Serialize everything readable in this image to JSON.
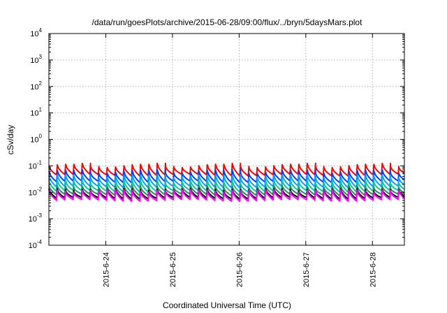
{
  "chart_data": {
    "type": "line",
    "title": "/data/run/goesPlots/archive/2015-06-28/09:00/flux/../bryn/5daysMars.plot",
    "xlabel": "Coordinated Universal Time (UTC)",
    "ylabel": "cSv/day",
    "y_scale": "log",
    "ylim": [
      0.0001,
      10000
    ],
    "xlim": [
      "2015-06-23T03:30",
      "2015-06-28T11:30"
    ],
    "grid": true,
    "legend": "none",
    "y_ticks": [
      {
        "base": "10",
        "exp": "-4",
        "value": 0.0001
      },
      {
        "base": "10",
        "exp": "-3",
        "value": 0.001
      },
      {
        "base": "10",
        "exp": "-2",
        "value": 0.01
      },
      {
        "base": "10",
        "exp": "-1",
        "value": 0.1
      },
      {
        "base": "10",
        "exp": "0",
        "value": 1
      },
      {
        "base": "10",
        "exp": "1",
        "value": 10
      },
      {
        "base": "10",
        "exp": "2",
        "value": 100
      },
      {
        "base": "10",
        "exp": "3",
        "value": 1000
      },
      {
        "base": "10",
        "exp": "4",
        "value": 10000
      }
    ],
    "x_ticks": [
      {
        "label": "2015-6-24",
        "value": "2015-06-24T00:00"
      },
      {
        "label": "2015-6-25",
        "value": "2015-06-25T00:00"
      },
      {
        "label": "2015-6-26",
        "value": "2015-06-26T00:00"
      },
      {
        "label": "2015-6-27",
        "value": "2015-06-27T00:00"
      },
      {
        "label": "2015-6-28",
        "value": "2015-06-28T00:00"
      }
    ],
    "sawtooth_period_hours": 3,
    "series": [
      {
        "color": "#ff0000",
        "peak": 0.1,
        "trough": 0.045
      },
      {
        "color": "#0040ff",
        "peak": 0.06,
        "trough": 0.025
      },
      {
        "color": "#00a0ff",
        "peak": 0.04,
        "trough": 0.016
      },
      {
        "color": "#00c8a0",
        "peak": 0.025,
        "trough": 0.011
      },
      {
        "color": "#2e8b57",
        "peak": 0.016,
        "trough": 0.008
      },
      {
        "color": "#000000",
        "peak": 0.012,
        "trough": 0.006
      },
      {
        "color": "#ff00ff",
        "peak": 0.011,
        "trough": 0.005
      }
    ]
  }
}
